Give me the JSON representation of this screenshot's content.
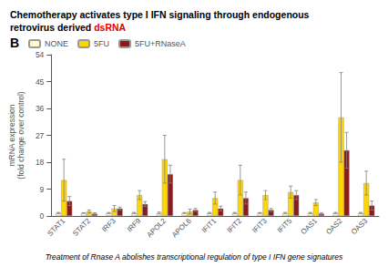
{
  "chart_data": {
    "type": "bar",
    "title": "Chemotherapy activates type I IFN signaling through endogenous\nretrovirus derived dsRNA",
    "annotations": [
      "B",
      "Treatment of Rnase A abolishes transcriptional regulation of type I IFN gene signatures"
    ],
    "categories": [
      "STAT1",
      "STAT2",
      "IRF3",
      "IRF9",
      "APOL2",
      "APOL6",
      "IFIT1",
      "IFIT2",
      "IFIT3",
      "IFIT5",
      "OAS1",
      "OAS2",
      "OAS3"
    ],
    "series": [
      {
        "name": "NONE",
        "color": "#FFFACD",
        "values": [
          1.0,
          1.0,
          1.0,
          1.0,
          1.0,
          1.0,
          1.0,
          1.0,
          1.0,
          1.0,
          1.0,
          1.0,
          1.0
        ],
        "errors": [
          0.2,
          0.1,
          0.15,
          0.2,
          0.3,
          0.15,
          0.2,
          0.2,
          0.15,
          0.2,
          0.2,
          0.2,
          0.2
        ]
      },
      {
        "name": "5FU",
        "color": "#FFD700",
        "values": [
          12.0,
          1.5,
          2.5,
          7.0,
          19.0,
          1.5,
          6.0,
          12.0,
          7.0,
          8.0,
          4.5,
          33.0,
          11.0
        ],
        "errors": [
          7.0,
          0.5,
          1.0,
          1.5,
          8.0,
          0.8,
          2.0,
          5.0,
          1.5,
          2.0,
          1.0,
          15.0,
          4.0
        ]
      },
      {
        "name": "5FU+RNaseA",
        "color": "#8B1A1A",
        "values": [
          5.0,
          0.8,
          2.5,
          4.0,
          14.0,
          2.0,
          2.5,
          6.0,
          2.0,
          7.0,
          0.8,
          22.0,
          3.5
        ],
        "errors": [
          1.5,
          0.3,
          0.5,
          0.8,
          3.0,
          0.5,
          0.8,
          2.0,
          0.5,
          1.5,
          0.3,
          6.0,
          1.5
        ]
      }
    ],
    "ylabel": "mRNA expression\n(fold change over control)",
    "ylim": [
      0,
      54
    ],
    "yticks": [
      0,
      9,
      18,
      27,
      36,
      45,
      54
    ],
    "legend": "upper left",
    "grid": false
  }
}
